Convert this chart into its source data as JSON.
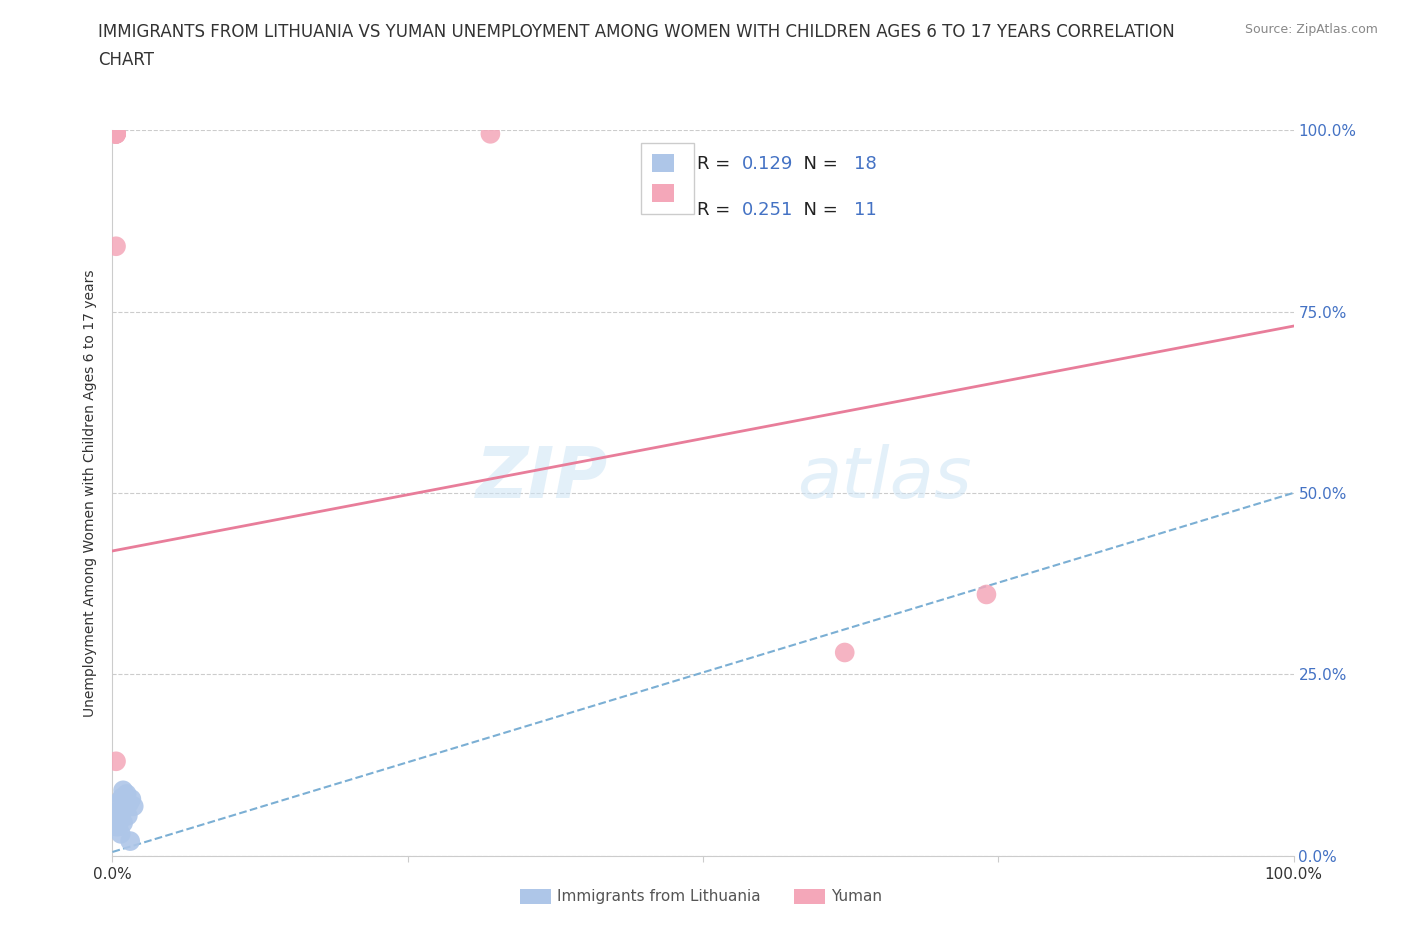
{
  "title_line1": "IMMIGRANTS FROM LITHUANIA VS YUMAN UNEMPLOYMENT AMONG WOMEN WITH CHILDREN AGES 6 TO 17 YEARS CORRELATION",
  "title_line2": "CHART",
  "source": "Source: ZipAtlas.com",
  "ylabel": "Unemployment Among Women with Children Ages 6 to 17 years",
  "xlim": [
    0,
    1
  ],
  "ylim": [
    0,
    1
  ],
  "blue_points_x": [
    0.005,
    0.006,
    0.007,
    0.008,
    0.009,
    0.01,
    0.011,
    0.012,
    0.013,
    0.014,
    0.003,
    0.004,
    0.016,
    0.018,
    0.005,
    0.007,
    0.009,
    0.015
  ],
  "blue_points_y": [
    0.06,
    0.075,
    0.05,
    0.08,
    0.09,
    0.07,
    0.065,
    0.085,
    0.055,
    0.072,
    0.04,
    0.06,
    0.078,
    0.068,
    0.04,
    0.03,
    0.045,
    0.02
  ],
  "pink_points_x": [
    0.003,
    0.003,
    0.32,
    0.62,
    0.74,
    0.003,
    0.003,
    0.003,
    0.003,
    0.003,
    0.003
  ],
  "pink_points_y": [
    0.995,
    0.84,
    0.995,
    0.28,
    0.36,
    0.995,
    0.995,
    0.995,
    0.995,
    0.13,
    0.995
  ],
  "blue_line_x": [
    0,
    1.0
  ],
  "blue_line_y": [
    0.005,
    0.5
  ],
  "pink_line_x": [
    0,
    1.0
  ],
  "pink_line_y": [
    0.42,
    0.73
  ],
  "blue_color": "#aec6e8",
  "pink_color": "#f4a7b9",
  "blue_line_color": "#7bafd4",
  "pink_line_color": "#e87d9a",
  "R_blue": 0.129,
  "N_blue": 18,
  "R_pink": 0.251,
  "N_pink": 11,
  "legend_blue_label": "Immigrants from Lithuania",
  "legend_pink_label": "Yuman",
  "watermark_zip": "ZIP",
  "watermark_atlas": "atlas",
  "title_fontsize": 12,
  "axis_label_fontsize": 10,
  "tick_fontsize": 11,
  "right_tick_color": "#4472c4",
  "grid_color": "#cccccc"
}
